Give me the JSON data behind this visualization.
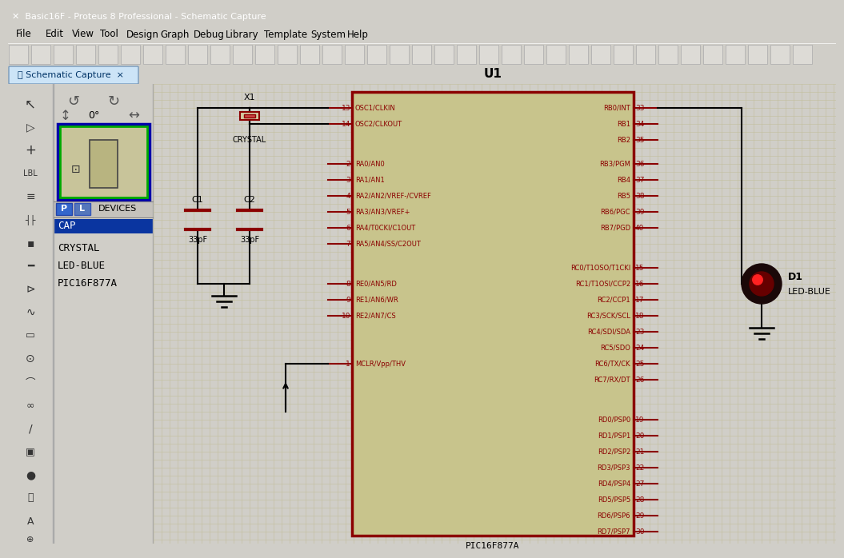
{
  "title": "Basic16F - Proteus 8 Professional - Schematic Capture",
  "menu_items": [
    "File",
    "Edit",
    "View",
    "Tool",
    "Design",
    "Graph",
    "Debug",
    "Library",
    "Template",
    "System",
    "Help"
  ],
  "tab_label": "Schematic Capture",
  "devices": [
    "CAP",
    "CRYSTAL",
    "LED-BLUE",
    "PIC16F877A"
  ],
  "titlebar_bg": "#1d5fa8",
  "titlebar_fg": "#ffffff",
  "menubar_bg": "#d6d3ce",
  "toolbar_bg": "#d0cec8",
  "tab_bg": "#cce4f7",
  "tab_bar_bg": "#b8cfe0",
  "panel_bg": "#d6d3ce",
  "left_icon_bg": "#c5c2bc",
  "preview_outer": "#0000aa",
  "preview_inner_border": "#00aa00",
  "preview_bg": "#c8c49a",
  "devices_header_bg": "#c5c2bc",
  "cap_selected_bg": "#0a35a0",
  "schematic_bg": "#d4d0b0",
  "grid_color": "#c2be9c",
  "ic_bg": "#c8c48c",
  "ic_border": "#8b0000",
  "pin_color": "#8b0000",
  "wire_color": "#000000",
  "text_dark": "#000000",
  "u1_label": "U1",
  "ic_name": "PIC16F877A",
  "left_pins": [
    {
      "num": "13",
      "name": "OSC1/CLKIN"
    },
    {
      "num": "14",
      "name": "OSC2/CLKOUT"
    },
    {
      "num": "2",
      "name": "RA0/AN0"
    },
    {
      "num": "3",
      "name": "RA1/AN1"
    },
    {
      "num": "4",
      "name": "RA2/AN2/VREF-/CVREF"
    },
    {
      "num": "5",
      "name": "RA3/AN3/VREF+"
    },
    {
      "num": "6",
      "name": "RA4/T0CKI/C1OUT"
    },
    {
      "num": "7",
      "name": "RA5/AN4/SS/C2OUT"
    },
    {
      "num": "8",
      "name": "RE0/AN5/RD"
    },
    {
      "num": "9",
      "name": "RE1/AN6/WR"
    },
    {
      "num": "10",
      "name": "RE2/AN7/CS"
    },
    {
      "num": "1",
      "name": "MCLR/Vpp/THV"
    }
  ],
  "rb_pins": [
    {
      "num": "33",
      "name": "RB0/INT"
    },
    {
      "num": "34",
      "name": "RB1"
    },
    {
      "num": "35",
      "name": "RB2"
    },
    {
      "num": "36",
      "name": "RB3/PGM"
    },
    {
      "num": "37",
      "name": "RB4"
    },
    {
      "num": "38",
      "name": "RB5"
    },
    {
      "num": "39",
      "name": "RB6/PGC"
    },
    {
      "num": "40",
      "name": "RB7/PGD"
    }
  ],
  "rc_pins": [
    {
      "num": "15",
      "name": "RC0/T1OSO/T1CKI"
    },
    {
      "num": "16",
      "name": "RC1/T1OSI/CCP2"
    },
    {
      "num": "17",
      "name": "RC2/CCP1"
    },
    {
      "num": "18",
      "name": "RC3/SCK/SCL"
    },
    {
      "num": "23",
      "name": "RC4/SDI/SDA"
    },
    {
      "num": "24",
      "name": "RC5/SDO"
    },
    {
      "num": "25",
      "name": "RC6/TX/CK"
    },
    {
      "num": "26",
      "name": "RC7/RX/DT"
    }
  ],
  "rd_pins": [
    {
      "num": "19",
      "name": "RD0/PSP0"
    },
    {
      "num": "20",
      "name": "RD1/PSP1"
    },
    {
      "num": "21",
      "name": "RD2/PSP2"
    },
    {
      "num": "22",
      "name": "RD3/PSP3"
    },
    {
      "num": "27",
      "name": "RD4/PSP4"
    },
    {
      "num": "28",
      "name": "RD5/PSP5"
    },
    {
      "num": "29",
      "name": "RD6/PSP6"
    },
    {
      "num": "30",
      "name": "RD7/PSP7"
    }
  ],
  "led_label": "D1",
  "led_type": "LED-BLUE",
  "crystal_label": "X1",
  "crystal_type": "CRYSTAL",
  "c1_label": "C1",
  "c1_value": "33pF",
  "c2_label": "C2",
  "c2_value": "33pF"
}
